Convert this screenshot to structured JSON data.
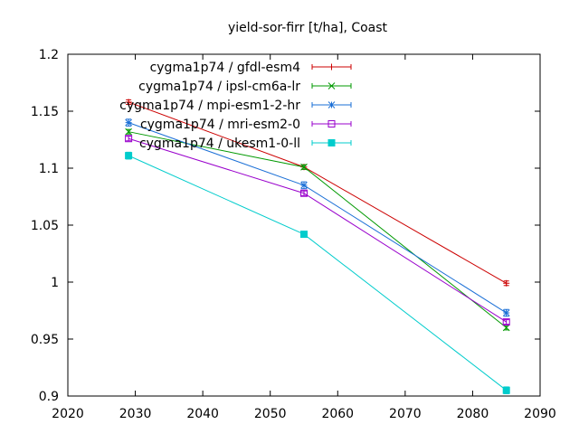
{
  "chart_data": {
    "type": "line",
    "title": "yield-sor-firr [t/ha], Coast",
    "xlabel": "",
    "ylabel": "",
    "xlim": [
      2020,
      2090
    ],
    "ylim": [
      0.9,
      1.2
    ],
    "xticks": [
      2020,
      2030,
      2040,
      2050,
      2060,
      2070,
      2080,
      2090
    ],
    "yticks": [
      0.9,
      0.95,
      1.0,
      1.05,
      1.1,
      1.15,
      1.2
    ],
    "xtick_labels": [
      "2020",
      "2030",
      "2040",
      "2050",
      "2060",
      "2070",
      "2080",
      "2090"
    ],
    "ytick_labels": [
      "0.9",
      "0.95",
      "1",
      "1.05",
      "1.1",
      "1.15",
      "1.2"
    ],
    "grid": false,
    "legend_position": "top-left",
    "x": [
      2029,
      2055,
      2085
    ],
    "series": [
      {
        "name": "cygma1p74 / gfdl-esm4",
        "values": [
          1.158,
          1.101,
          0.999
        ],
        "error": [
          0.002,
          0.002,
          0.002
        ],
        "color": "#cc0000",
        "marker": "plus"
      },
      {
        "name": "cygma1p74 / ipsl-cm6a-lr",
        "values": [
          1.132,
          1.101,
          0.96
        ],
        "error": [
          0.002,
          0.002,
          0.002
        ],
        "color": "#009900",
        "marker": "x"
      },
      {
        "name": "cygma1p74 / mpi-esm1-2-hr",
        "values": [
          1.14,
          1.085,
          0.973
        ],
        "error": [
          0.003,
          0.003,
          0.003
        ],
        "color": "#1a6fd6",
        "marker": "star"
      },
      {
        "name": "cygma1p74 / mri-esm2-0",
        "values": [
          1.126,
          1.078,
          0.965
        ],
        "error": [
          0.002,
          0.002,
          0.002
        ],
        "color": "#9900cc",
        "marker": "square"
      },
      {
        "name": "cygma1p74 / ukesm1-0-ll",
        "values": [
          1.111,
          1.042,
          0.905
        ],
        "error": [
          0.003,
          0.002,
          0.003
        ],
        "color": "#00cccc",
        "marker": "filled-square"
      }
    ]
  }
}
